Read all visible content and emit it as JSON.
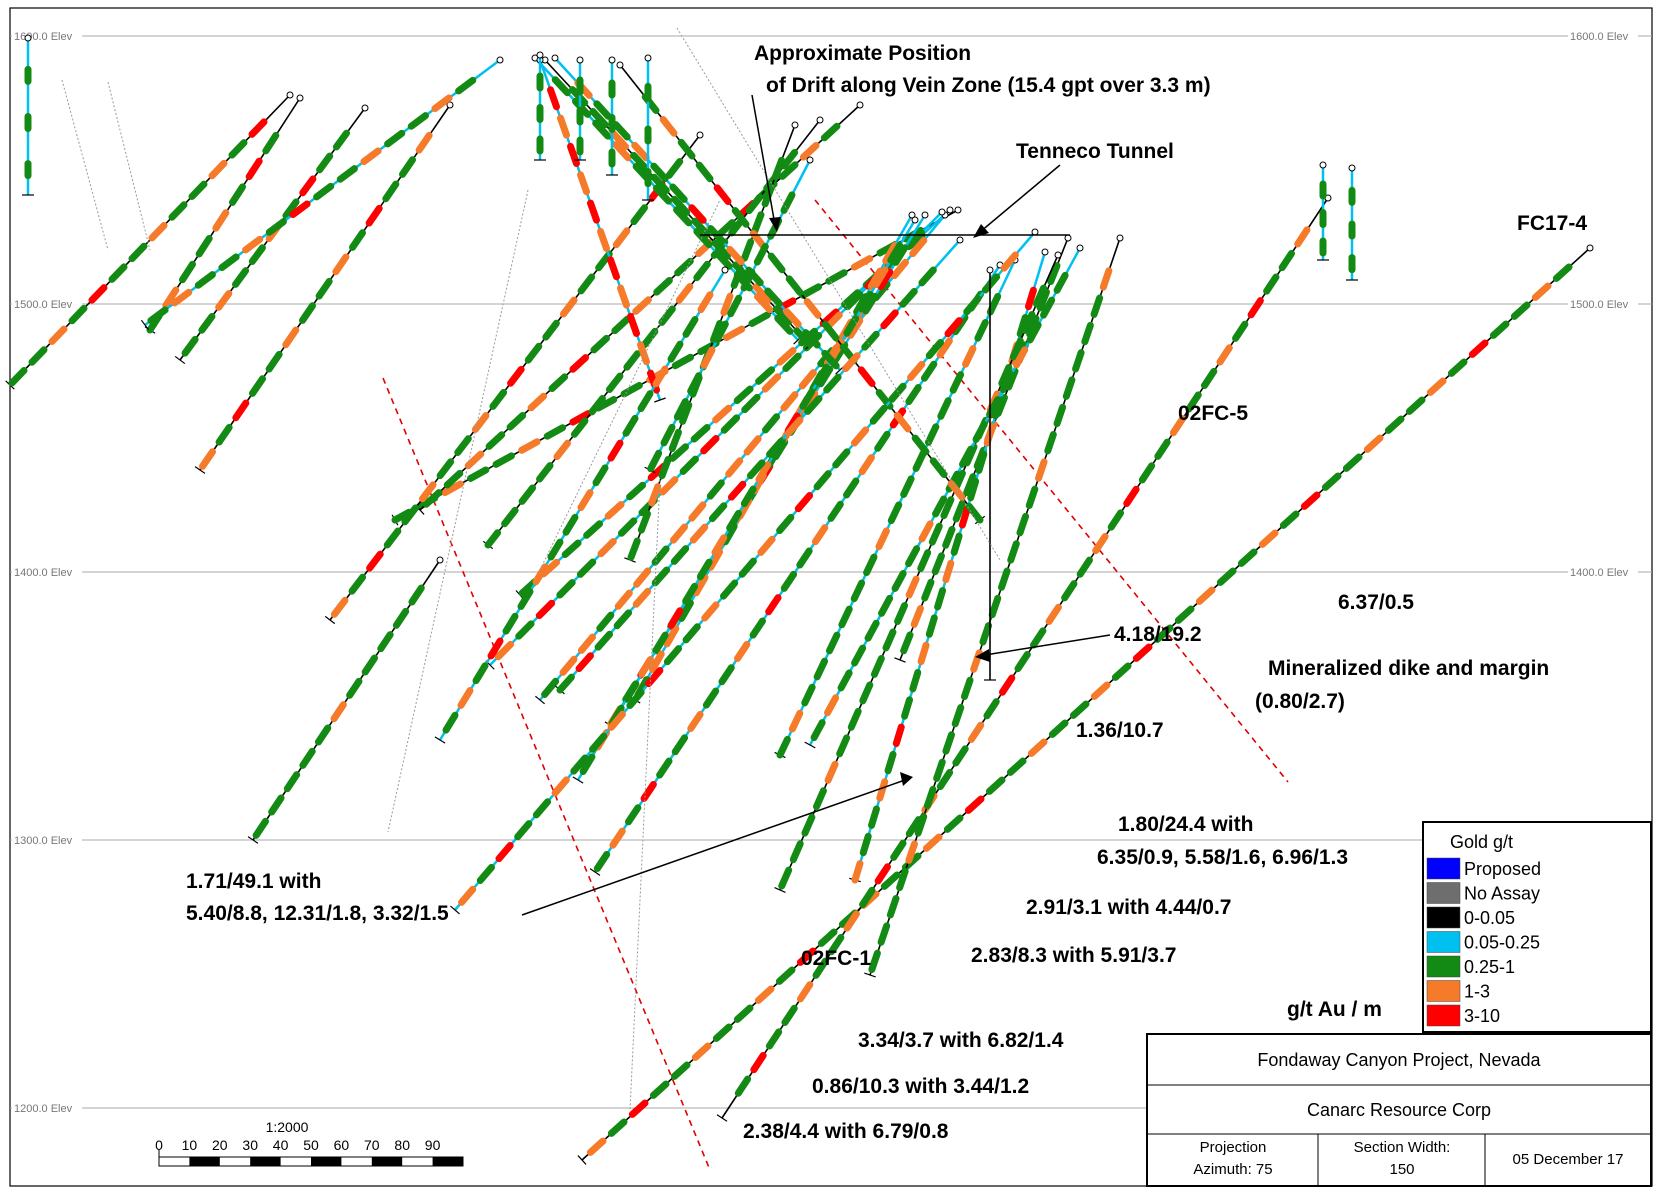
{
  "elevation_labels": [
    "1600.0 Elev",
    "1500.0 Elev",
    "1400.0 Elev",
    "1300.0 Elev",
    "1200.0 Elev"
  ],
  "annotations": {
    "drift_line1": "Approximate Position",
    "drift_line2": "of Drift along Vein Zone (15.4 gpt over 3.3 m)",
    "tenneco": "Tenneco Tunnel",
    "hole_fc17_4": "FC17-4",
    "hole_02fc_5": "02FC-5",
    "hole_02fc_1": "02FC-1",
    "int_4_18": "4.18/19.2",
    "int_6_37": "6.37/0.5",
    "dike_line1": "Mineralized dike and margin",
    "dike_line2": "(0.80/2.7)",
    "int_1_36": "1.36/10.7",
    "int_1_80_line1": "1.80/24.4 with",
    "int_1_80_line2": "6.35/0.9, 5.58/1.6, 6.96/1.3",
    "int_1_71_line1": "1.71/49.1 with",
    "int_1_71_line2": "5.40/8.8, 12.31/1.8, 3.32/1.5",
    "int_2_91": "2.91/3.1 with 4.44/0.7",
    "int_2_83": "2.83/8.3 with 5.91/3.7",
    "units": "g/t Au / m",
    "int_3_34": "3.34/3.7 with 6.82/1.4",
    "int_0_86": "0.86/10.3 with 3.44/1.2",
    "int_2_38": "2.38/4.4 with 6.79/0.8"
  },
  "legend": {
    "title": "Gold g/t",
    "items": [
      {
        "label": "Proposed",
        "color": "#0000ff"
      },
      {
        "label": "No Assay",
        "color": "#6e6e6e"
      },
      {
        "label": "0-0.05",
        "color": "#000000"
      },
      {
        "label": "0.05-0.25",
        "color": "#00c0f0"
      },
      {
        "label": "0.25-1",
        "color": "#138a13"
      },
      {
        "label": "1-3",
        "color": "#f57a2a"
      },
      {
        "label": "3-10",
        "color": "#ff0000"
      }
    ]
  },
  "title_block": {
    "project": "Fondaway Canyon Project, Nevada",
    "company": "Canarc Resource Corp",
    "projection_label": "Projection",
    "projection_value": "Azimuth: 75",
    "section_label": "Section Width:",
    "section_value": "150",
    "date": "05 December 17"
  },
  "scale": {
    "ratio": "1:2000",
    "ticks": [
      "0",
      "10",
      "20",
      "30",
      "40",
      "50",
      "60",
      "70",
      "80",
      "90"
    ]
  },
  "colors": {
    "black": "#000000",
    "cyan": "#00c0f0",
    "green": "#138a13",
    "orange": "#f57a2a",
    "red": "#ff0000",
    "magenta": "#ff00ff",
    "gray": "#9a9a9a",
    "fault": "#e00000"
  }
}
